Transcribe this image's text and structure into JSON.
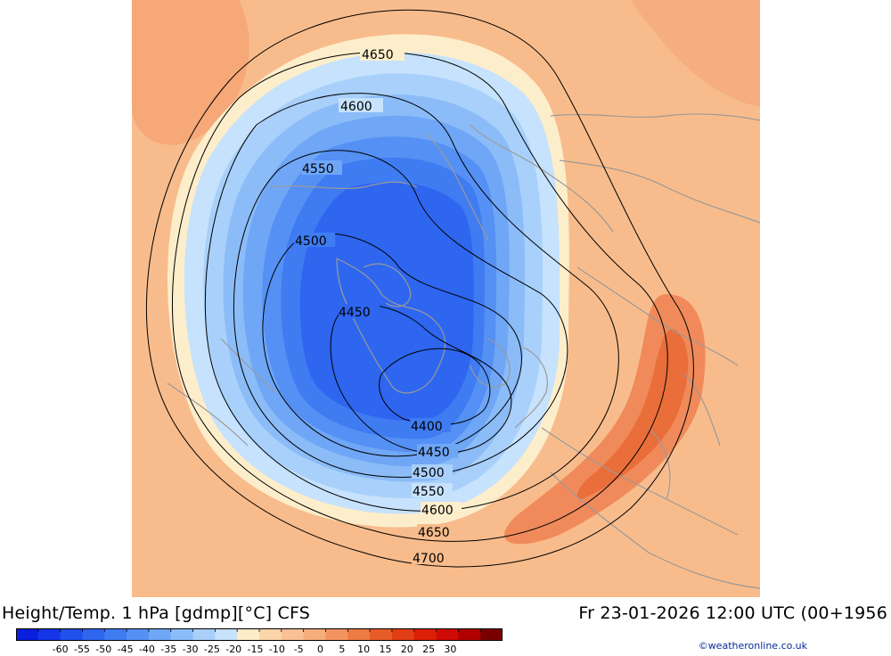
{
  "title_left": "Height/Temp. 1 hPa [gdmp][°C] CFS",
  "title_right": "Fr 23-01-2026 12:00 UTC (00+1956",
  "credit": "©weatheronline.co.uk",
  "colorbar": {
    "labels": [
      "-60",
      "-55",
      "-50",
      "-45",
      "-40",
      "-35",
      "-30",
      "-25",
      "-20",
      "-15",
      "-10",
      "-5",
      "0",
      "5",
      "10",
      "15",
      "20",
      "25",
      "30"
    ],
    "colors": [
      "#0a1ee0",
      "#1436e6",
      "#2050ec",
      "#2e66f0",
      "#3f7cf2",
      "#5590f4",
      "#6fa6f6",
      "#8bbcf8",
      "#a8d0fa",
      "#c6e2fc",
      "#fdecc8",
      "#fbd4aa",
      "#f9c096",
      "#f7ac7c",
      "#f39460",
      "#ee7a44",
      "#e85c2a",
      "#e23e16",
      "#dc2008",
      "#d00a04",
      "#b00000",
      "#7a0000"
    ]
  },
  "contour_labels": [
    "4650",
    "4600",
    "4550",
    "4500",
    "4450",
    "4400",
    "4450",
    "4500",
    "4550",
    "4600",
    "4650",
    "4700"
  ]
}
